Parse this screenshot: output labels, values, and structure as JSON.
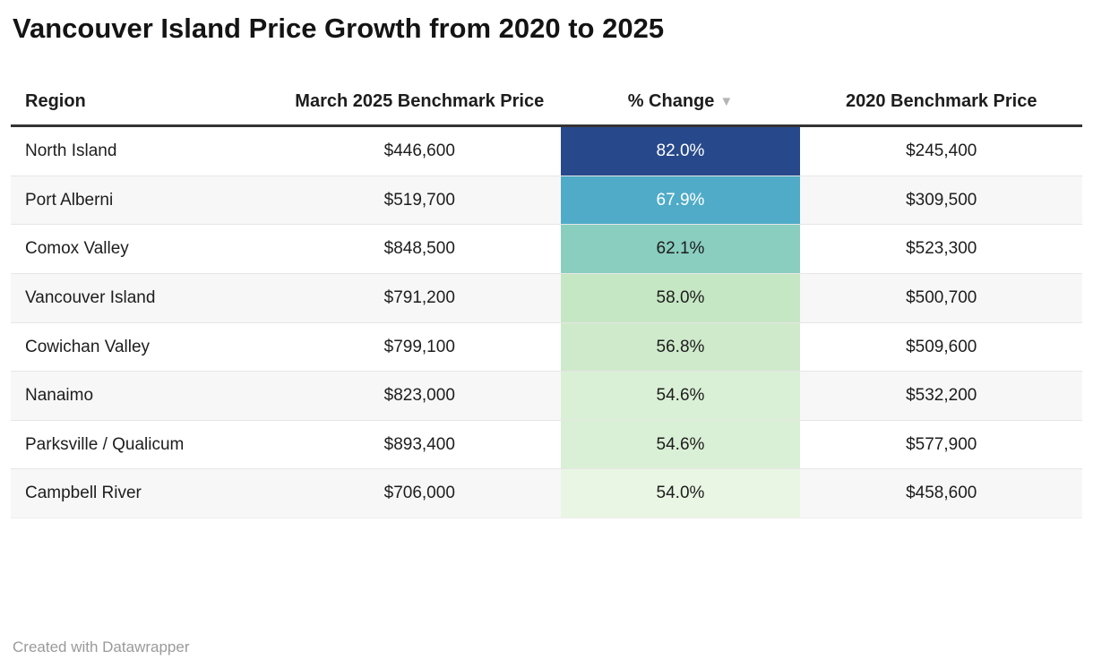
{
  "header": {
    "title": "Vancouver Island Price Growth from 2020 to 2025"
  },
  "table": {
    "columns": [
      {
        "id": "region",
        "label": "Region",
        "align": "left"
      },
      {
        "id": "price_2025",
        "label": "March 2025 Benchmark Price",
        "align": "center"
      },
      {
        "id": "change",
        "label": "% Change",
        "align": "center",
        "sort_icon": "▼",
        "sorted": "descending"
      },
      {
        "id": "price_2020",
        "label": "2020 Benchmark Price",
        "align": "center"
      }
    ],
    "rows": [
      {
        "region": "North Island",
        "price_2025": "$446,600",
        "change": "82.0%",
        "price_2020": "$245,400",
        "change_bg": "#27498b",
        "change_fg": "#ffffff"
      },
      {
        "region": "Port Alberni",
        "price_2025": "$519,700",
        "change": "67.9%",
        "price_2020": "$309,500",
        "change_bg": "#4fabc8",
        "change_fg": "#ffffff"
      },
      {
        "region": "Comox Valley",
        "price_2025": "$848,500",
        "change": "62.1%",
        "price_2020": "$523,300",
        "change_bg": "#8acec0",
        "change_fg": "#1d1d1d"
      },
      {
        "region": "Vancouver Island",
        "price_2025": "$791,200",
        "change": "58.0%",
        "price_2020": "$500,700",
        "change_bg": "#c6e7c4",
        "change_fg": "#1d1d1d"
      },
      {
        "region": "Cowichan Valley",
        "price_2025": "$799,100",
        "change": "56.8%",
        "price_2020": "$509,600",
        "change_bg": "#cfeacb",
        "change_fg": "#1d1d1d"
      },
      {
        "region": "Nanaimo",
        "price_2025": "$823,000",
        "change": "54.6%",
        "price_2020": "$532,200",
        "change_bg": "#daf0d6",
        "change_fg": "#1d1d1d"
      },
      {
        "region": "Parksville / Qualicum",
        "price_2025": "$893,400",
        "change": "54.6%",
        "price_2020": "$577,900",
        "change_bg": "#daf0d6",
        "change_fg": "#1d1d1d"
      },
      {
        "region": "Campbell River",
        "price_2025": "$706,000",
        "change": "54.0%",
        "price_2020": "$458,600",
        "change_bg": "#eaf6e4",
        "change_fg": "#1d1d1d"
      }
    ]
  },
  "footer": {
    "attribution": "Created with Datawrapper"
  },
  "colors": {
    "title_text": "#141414",
    "body_text": "#1d1d1d",
    "header_border": "#333333",
    "row_border": "#e6e6e6",
    "row_stripe": "#f7f7f7",
    "sort_icon": "#b5b5b5",
    "footer_text": "#9a9a9a",
    "change_scale_high": "#27498b",
    "change_scale_low": "#eaf6e4"
  },
  "chart_data": {
    "type": "table",
    "title": "Vancouver Island Price Growth from 2020 to 2025",
    "columns": [
      "Region",
      "March 2025 Benchmark Price",
      "% Change",
      "2020 Benchmark Price"
    ],
    "rows": [
      [
        "North Island",
        446600,
        82.0,
        245400
      ],
      [
        "Port Alberni",
        519700,
        67.9,
        309500
      ],
      [
        "Comox Valley",
        848500,
        62.1,
        523300
      ],
      [
        "Vancouver Island",
        791200,
        58.0,
        500700
      ],
      [
        "Cowichan Valley",
        799100,
        56.8,
        509600
      ],
      [
        "Nanaimo",
        823000,
        54.6,
        532200
      ],
      [
        "Parksville / Qualicum",
        893400,
        54.6,
        577900
      ],
      [
        "Campbell River",
        706000,
        54.0,
        458600
      ]
    ],
    "sort": {
      "column": "% Change",
      "direction": "descending"
    },
    "heatmap_column": "% Change",
    "heatmap_range": [
      54.0,
      82.0
    ],
    "attribution": "Created with Datawrapper"
  }
}
